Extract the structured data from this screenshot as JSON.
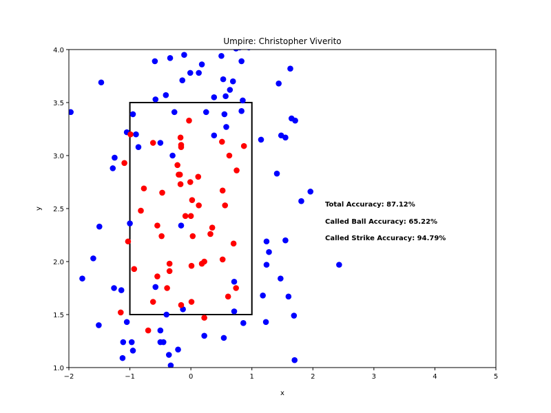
{
  "chart_data": {
    "type": "scatter",
    "title": "Umpire: Christopher Viverito",
    "xlabel": "x",
    "ylabel": "y",
    "xlim": [
      -2,
      5
    ],
    "ylim": [
      1.0,
      4.0
    ],
    "xticks": [
      "−2",
      "−1",
      "0",
      "1",
      "2",
      "3",
      "4",
      "5"
    ],
    "yticks": [
      "1.0",
      "1.5",
      "2.0",
      "2.5",
      "3.0",
      "3.5",
      "4.0"
    ],
    "xtick_values": [
      -2,
      -1,
      0,
      1,
      2,
      3,
      4,
      5
    ],
    "ytick_values": [
      1.0,
      1.5,
      2.0,
      2.5,
      3.0,
      3.5,
      4.0
    ],
    "grid": false,
    "strike_zone": {
      "x": [
        -1,
        1
      ],
      "y": [
        1.5,
        3.5
      ],
      "color": "#000000"
    },
    "annotations": [
      "Total Accuracy: 87.12%",
      "Called Ball Accuracy: 65.22%",
      "Called Strike Accuracy: 94.79%"
    ],
    "series": [
      {
        "color": "#0000ff",
        "points": [
          [
            -1.97,
            3.41
          ],
          [
            -1.47,
            3.69
          ],
          [
            -1.6,
            2.03
          ],
          [
            -1.78,
            1.84
          ],
          [
            -1.5,
            2.33
          ],
          [
            -1.51,
            1.4
          ],
          [
            -1.25,
            2.98
          ],
          [
            -1.28,
            2.88
          ],
          [
            -1.26,
            1.75
          ],
          [
            -1.14,
            1.73
          ],
          [
            -1.11,
            1.24
          ],
          [
            -1.12,
            1.09
          ],
          [
            -1.05,
            3.22
          ],
          [
            -1.0,
            2.36
          ],
          [
            -1.05,
            1.43
          ],
          [
            -0.97,
            1.24
          ],
          [
            -0.95,
            1.16
          ],
          [
            -0.95,
            3.39
          ],
          [
            -0.9,
            3.2
          ],
          [
            -0.86,
            3.08
          ],
          [
            -0.59,
            3.89
          ],
          [
            -0.58,
            3.53
          ],
          [
            -0.41,
            3.57
          ],
          [
            -0.34,
            3.92
          ],
          [
            -0.5,
            3.12
          ],
          [
            -0.3,
            3.0
          ],
          [
            -0.27,
            3.41
          ],
          [
            -0.11,
            3.95
          ],
          [
            -0.14,
            3.71
          ],
          [
            -0.01,
            3.78
          ],
          [
            0.13,
            3.78
          ],
          [
            0.18,
            3.86
          ],
          [
            -0.16,
            2.34
          ],
          [
            -0.13,
            1.55
          ],
          [
            -0.4,
            1.5
          ],
          [
            -0.58,
            1.76
          ],
          [
            -0.5,
            1.35
          ],
          [
            -0.5,
            1.24
          ],
          [
            -0.45,
            1.24
          ],
          [
            -0.36,
            1.12
          ],
          [
            -0.33,
            1.02
          ],
          [
            -0.21,
            1.17
          ],
          [
            0.25,
            3.41
          ],
          [
            0.38,
            3.55
          ],
          [
            0.5,
            3.94
          ],
          [
            0.53,
            3.72
          ],
          [
            0.57,
            3.56
          ],
          [
            0.64,
            3.62
          ],
          [
            0.69,
            3.7
          ],
          [
            0.38,
            3.19
          ],
          [
            0.58,
            3.27
          ],
          [
            0.55,
            3.39
          ],
          [
            0.83,
            3.42
          ],
          [
            0.85,
            3.52
          ],
          [
            0.83,
            3.89
          ],
          [
            0.8,
            4.02
          ],
          [
            0.74,
            4.01
          ],
          [
            0.95,
            4.02
          ],
          [
            1.63,
            3.82
          ],
          [
            1.44,
            3.68
          ],
          [
            1.65,
            3.35
          ],
          [
            1.71,
            3.33
          ],
          [
            1.15,
            3.15
          ],
          [
            1.48,
            3.19
          ],
          [
            1.55,
            3.17
          ],
          [
            1.41,
            2.83
          ],
          [
            1.96,
            2.66
          ],
          [
            1.81,
            2.57
          ],
          [
            1.24,
            2.19
          ],
          [
            1.55,
            2.2
          ],
          [
            1.28,
            2.09
          ],
          [
            1.24,
            1.97
          ],
          [
            1.47,
            1.84
          ],
          [
            1.6,
            1.67
          ],
          [
            1.18,
            1.68
          ],
          [
            1.69,
            1.49
          ],
          [
            1.23,
            1.43
          ],
          [
            1.7,
            1.07
          ],
          [
            2.43,
            1.97
          ],
          [
            0.71,
            1.81
          ],
          [
            0.71,
            1.53
          ],
          [
            0.86,
            1.42
          ],
          [
            0.22,
            1.3
          ],
          [
            0.54,
            1.28
          ]
        ]
      },
      {
        "color": "#ff0000",
        "points": [
          [
            -0.99,
            3.2
          ],
          [
            -1.09,
            2.93
          ],
          [
            -1.03,
            2.19
          ],
          [
            -0.93,
            1.93
          ],
          [
            -1.15,
            1.52
          ],
          [
            -0.77,
            2.69
          ],
          [
            -0.82,
            2.48
          ],
          [
            -0.7,
            1.35
          ],
          [
            -0.62,
            3.12
          ],
          [
            -0.62,
            1.62
          ],
          [
            -0.55,
            2.34
          ],
          [
            -0.48,
            2.24
          ],
          [
            -0.55,
            1.86
          ],
          [
            -0.47,
            2.65
          ],
          [
            -0.39,
            1.75
          ],
          [
            -0.35,
            1.98
          ],
          [
            -0.35,
            1.91
          ],
          [
            -0.22,
            2.91
          ],
          [
            -0.2,
            2.82
          ],
          [
            -0.18,
            2.82
          ],
          [
            -0.17,
            3.17
          ],
          [
            -0.16,
            3.1
          ],
          [
            -0.16,
            3.08
          ],
          [
            -0.17,
            2.73
          ],
          [
            -0.16,
            1.59
          ],
          [
            -0.09,
            2.43
          ],
          [
            -0.03,
            3.33
          ],
          [
            -0.01,
            2.75
          ],
          [
            0.02,
            2.58
          ],
          [
            0.0,
            2.43
          ],
          [
            0.03,
            2.24
          ],
          [
            0.01,
            1.96
          ],
          [
            0.01,
            1.62
          ],
          [
            0.12,
            2.8
          ],
          [
            0.13,
            2.53
          ],
          [
            0.18,
            1.98
          ],
          [
            0.22,
            2.0
          ],
          [
            0.22,
            1.47
          ],
          [
            0.32,
            2.26
          ],
          [
            0.35,
            2.32
          ],
          [
            0.51,
            3.13
          ],
          [
            0.52,
            2.67
          ],
          [
            0.56,
            2.53
          ],
          [
            0.52,
            2.02
          ],
          [
            0.63,
            3.0
          ],
          [
            0.61,
            1.67
          ],
          [
            0.75,
            2.86
          ],
          [
            0.7,
            2.17
          ],
          [
            0.74,
            1.75
          ],
          [
            0.87,
            3.09
          ]
        ]
      }
    ]
  }
}
